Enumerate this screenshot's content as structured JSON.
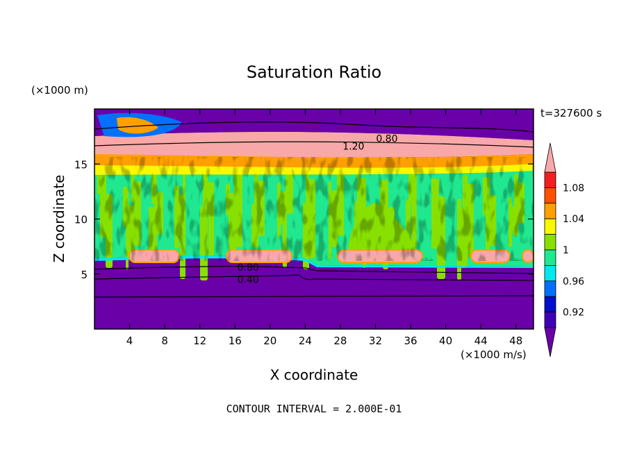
{
  "chart_data": {
    "type": "heatmap",
    "title": "Saturation Ratio",
    "xlabel": "X coordinate",
    "ylabel": "Z coordinate",
    "x_unit": "(×1000 m/s)",
    "y_unit": "(×1000 m)",
    "time_label": "t=327600 s",
    "footer": "CONTOUR INTERVAL = 2.000E-01",
    "xlim": [
      0,
      50
    ],
    "ylim": [
      0,
      20
    ],
    "x_ticks": [
      4,
      8,
      12,
      16,
      20,
      24,
      28,
      32,
      36,
      40,
      44,
      48
    ],
    "y_ticks": [
      5,
      10,
      15
    ],
    "colorbar": {
      "labels": [
        "1.08",
        "1.04",
        "1",
        "0.96",
        "0.92"
      ],
      "label_values": [
        1.08,
        1.04,
        1.0,
        0.96,
        0.92
      ],
      "levels": [
        0.9,
        0.92,
        0.94,
        0.96,
        0.98,
        1.0,
        1.02,
        1.04,
        1.06,
        1.08,
        1.1
      ],
      "colors": [
        "#6a00a8",
        "#3f00b8",
        "#0010c8",
        "#0070ff",
        "#00e8f0",
        "#20e890",
        "#88e000",
        "#f8f800",
        "#ffa000",
        "#ff5000",
        "#f02020",
        "#f8a8a8"
      ]
    },
    "contour_labels": [
      {
        "text": "0.80",
        "x": 33.3,
        "y": 17.0
      },
      {
        "text": "1.20",
        "x": 29.5,
        "y": 16.3
      },
      {
        "text": "0.80",
        "x": 17.5,
        "y": 5.3
      },
      {
        "text": "0.40",
        "x": 17.5,
        "y": 4.2
      }
    ]
  }
}
